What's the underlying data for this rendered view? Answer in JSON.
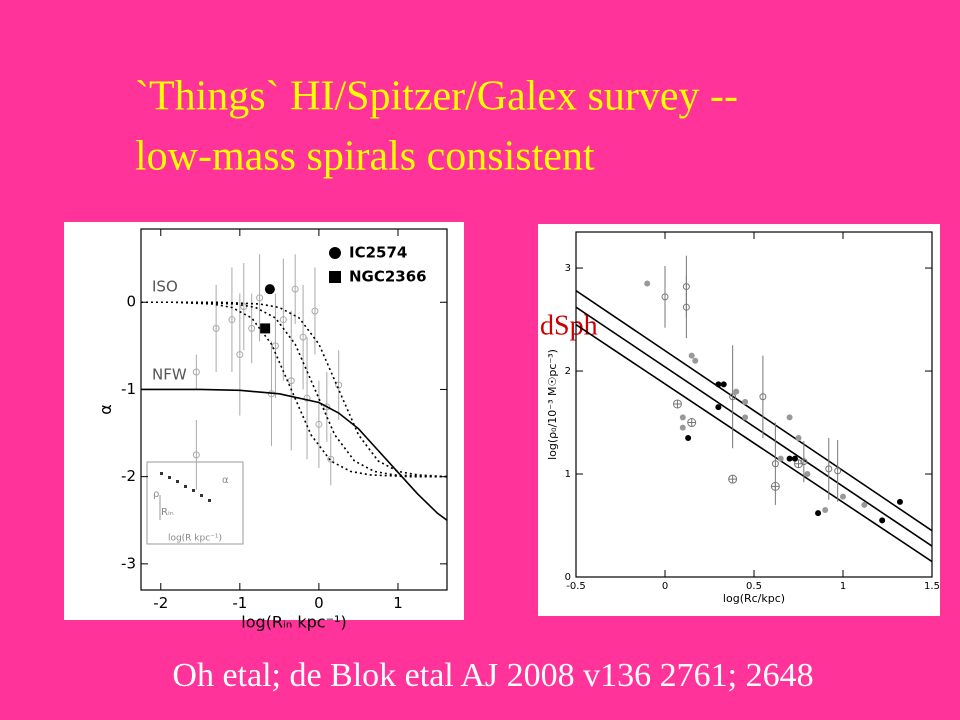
{
  "title_lines": [
    "`Things` HI/Spitzer/Galex survey --",
    "low-mass spirals consistent"
  ],
  "annotation": "dSph",
  "footer": "Oh etal; de Blok etal AJ  2008 v136 2761; 2648",
  "chart_data": [
    {
      "type": "scatter",
      "xlabel": "log(Rᵢₙ kpc⁻¹)",
      "ylabel": "α",
      "xlim": [
        -2.25,
        1.62
      ],
      "ylim": [
        -3.3,
        0.84
      ],
      "xticks": [
        -2,
        -1,
        0,
        1
      ],
      "yticks": [
        -3,
        -2,
        -1,
        0
      ],
      "annotations": [
        "ISO",
        "NFW"
      ],
      "inset": {
        "xlabel": "log(R kpc⁻¹)",
        "ylabel": "ρ",
        "curve_label": "α",
        "marker_label": "Rᵢₙ"
      },
      "series": [
        {
          "color": "#aaaaaa",
          "marker": "open",
          "x": [
            -1.55,
            -1.55,
            -1.3,
            -1.1,
            -1.0,
            -0.95,
            -0.85,
            -0.75,
            -0.55,
            -0.45,
            -0.35,
            -0.3,
            -0.2,
            -0.15,
            -0.05,
            0,
            0.1,
            0.25,
            0.15,
            -0.6
          ],
          "values": [
            -1.75,
            -0.8,
            -0.3,
            -0.2,
            -0.6,
            -0.05,
            -0.3,
            0.05,
            -0.5,
            -0.2,
            -0.9,
            0.15,
            -0.4,
            -1.1,
            -0.1,
            -1.4,
            -1.2,
            -0.95,
            -1.8,
            -1.05
          ],
          "errors": [
            0.4,
            0.2,
            0.5,
            0.6,
            0.7,
            0.5,
            0.4,
            0.5,
            0.6,
            0.7,
            0.8,
            0.4,
            0.6,
            0.7,
            0.5,
            0.5,
            0.4,
            0.4,
            0.3,
            0.6
          ]
        },
        {
          "color": "#000000",
          "style": "solid",
          "x": [
            -2.25,
            -2,
            -1.5,
            -1,
            -0.5,
            0,
            0.25,
            0.5,
            0.75,
            1,
            1.25,
            1.5,
            1.62
          ],
          "values": [
            -1,
            -1,
            -1,
            -1.01,
            -1.05,
            -1.15,
            -1.27,
            -1.45,
            -1.7,
            -1.95,
            -2.2,
            -2.42,
            -2.5
          ]
        },
        {
          "color": "#000000",
          "style": "dotted",
          "x": [
            -2.25,
            -1.85,
            -1.35,
            -1.1,
            -0.85,
            -0.6,
            -0.35,
            -0.1,
            0.15,
            0.4,
            0.65,
            1.15,
            1.62
          ],
          "values": [
            0,
            0,
            -0.02,
            -0.06,
            -0.18,
            -0.48,
            -1,
            -1.52,
            -1.82,
            -1.94,
            -1.98,
            -2,
            -2
          ]
        },
        {
          "color": "#000000",
          "style": "dotted",
          "x": [
            -2.25,
            -1.55,
            -1.05,
            -0.8,
            -0.55,
            -0.3,
            -0.05,
            0.2,
            0.45,
            0.7,
            0.95,
            1.45,
            1.62
          ],
          "values": [
            0,
            0,
            -0.02,
            -0.06,
            -0.18,
            -0.48,
            -1,
            -1.52,
            -1.82,
            -1.94,
            -1.98,
            -2,
            -2
          ]
        },
        {
          "color": "#000000",
          "style": "dotted",
          "x": [
            -2.25,
            -1.25,
            -0.75,
            -0.5,
            -0.25,
            0,
            0.25,
            0.5,
            0.75,
            1,
            1.25,
            1.62
          ],
          "values": [
            0,
            0,
            -0.02,
            -0.06,
            -0.18,
            -0.48,
            -1,
            -1.52,
            -1.82,
            -1.94,
            -1.98,
            -2
          ]
        },
        {
          "name": "IC2574",
          "color": "#000000",
          "marker": "circle",
          "size": 5,
          "x": [
            -0.62
          ],
          "values": [
            0.15
          ]
        },
        {
          "name": "NGC2366",
          "color": "#000000",
          "marker": "square",
          "size": 5,
          "x": [
            -0.68
          ],
          "values": [
            -0.3
          ]
        }
      ]
    },
    {
      "type": "scatter",
      "xlabel": "log(Rc/kpc)",
      "ylabel": "log(ρ₀/10⁻³ M☉pc⁻³)",
      "xlim": [
        -0.5,
        1.5
      ],
      "ylim": [
        0,
        3.35
      ],
      "xticks": [
        -0.5,
        0,
        0.5,
        1,
        1.5
      ],
      "yticks": [
        0,
        1,
        2,
        3
      ],
      "series": [
        {
          "color": "#000000",
          "style": "solid",
          "x": [
            -0.5,
            1.5
          ],
          "values": [
            2.78,
            0.45
          ]
        },
        {
          "color": "#000000",
          "style": "solid",
          "x": [
            -0.5,
            1.5
          ],
          "values": [
            2.62,
            0.3
          ]
        },
        {
          "color": "#000000",
          "style": "solid",
          "x": [
            -0.5,
            1.5
          ],
          "values": [
            2.45,
            0.15
          ]
        },
        {
          "color": "#777777",
          "marker": "open",
          "x": [
            0,
            0.12,
            0.12,
            0.38,
            0.55,
            0.62,
            0.78,
            0.97,
            0.92
          ],
          "values": [
            2.72,
            2.82,
            2.62,
            1.75,
            1.75,
            1.1,
            1.12,
            1.03,
            1.05
          ],
          "errors": [
            0.3,
            0.3,
            0.3,
            0.5,
            0.4,
            0.4,
            0.2,
            0.3,
            0.3
          ]
        },
        {
          "color": "#777777",
          "marker": "crossed",
          "x": [
            0.07,
            0.15,
            0.38,
            0.62,
            0.75
          ],
          "values": [
            1.68,
            1.5,
            0.95,
            0.88,
            1.1
          ]
        },
        {
          "color": "#999999",
          "marker": "circle",
          "x": [
            -0.1,
            0.15,
            0.17,
            0.1,
            0.1,
            0.4,
            0.45,
            0.7,
            0.75,
            0.65,
            0.8,
            0.9,
            1.0,
            1.12,
            0.45
          ],
          "values": [
            2.85,
            2.15,
            2.1,
            1.55,
            1.45,
            1.8,
            1.7,
            1.55,
            1.35,
            1.15,
            1.0,
            0.65,
            0.78,
            0.7,
            1.55
          ]
        },
        {
          "color": "#000000",
          "marker": "circle",
          "x": [
            0.3,
            0.3,
            0.33,
            0.13,
            0.7,
            0.73,
            0.86,
            1.22,
            1.32
          ],
          "values": [
            1.65,
            1.87,
            1.87,
            1.35,
            1.15,
            1.15,
            0.62,
            0.55,
            0.73
          ]
        }
      ]
    }
  ]
}
